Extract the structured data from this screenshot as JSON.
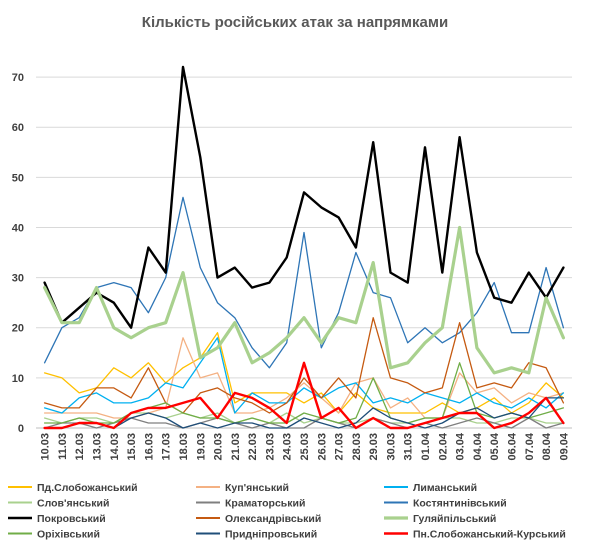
{
  "chart_data": {
    "type": "line",
    "title": "Кількість російських атак за напрямками",
    "ylim": [
      0,
      75
    ],
    "yticks": [
      0,
      10,
      20,
      30,
      40,
      50,
      60,
      70
    ],
    "grid": "horizontal",
    "legend_position": "bottom",
    "categories": [
      "10.03",
      "11.03",
      "12.03",
      "13.03",
      "14.03",
      "15.03",
      "16.03",
      "17.03",
      "18.03",
      "19.03",
      "20.03",
      "21.03",
      "22.03",
      "23.03",
      "24.03",
      "25.03",
      "26.03",
      "27.03",
      "28.03",
      "29.03",
      "30.03",
      "31.03",
      "01.04",
      "02.04",
      "03.04",
      "04.04",
      "05.04",
      "06.04",
      "07.04",
      "08.04",
      "09.04"
    ],
    "series": [
      {
        "name": "Пд.Слобожанський",
        "color": "#ffc000",
        "width": 1.3,
        "values": [
          11,
          10,
          7,
          8,
          12,
          10,
          13,
          9,
          12,
          14,
          19,
          5,
          7,
          7,
          7,
          5,
          7,
          3,
          7,
          4,
          3,
          3,
          3,
          5,
          3,
          4,
          6,
          3,
          5,
          9,
          6
        ]
      },
      {
        "name": "Куп'янський",
        "color": "#f4b183",
        "width": 1.3,
        "values": [
          3,
          3,
          3,
          3,
          2,
          2,
          3,
          4,
          18,
          10,
          11,
          3,
          3,
          4,
          6,
          9,
          6,
          3,
          9,
          10,
          4,
          6,
          2,
          2,
          11,
          7,
          8,
          5,
          7,
          6,
          7
        ]
      },
      {
        "name": "Лиманський",
        "color": "#00b0f0",
        "width": 1.3,
        "values": [
          4,
          3,
          6,
          7,
          5,
          5,
          6,
          9,
          8,
          13,
          18,
          3,
          7,
          5,
          5,
          8,
          6,
          8,
          9,
          5,
          6,
          5,
          7,
          6,
          5,
          7,
          5,
          4,
          6,
          4,
          7
        ]
      },
      {
        "name": "Слов'янський",
        "color": "#a9d18e",
        "width": 1.3,
        "values": [
          2,
          1,
          2,
          2,
          1,
          3,
          3,
          2,
          3,
          2,
          3,
          1,
          2,
          1,
          3,
          1,
          2,
          1,
          1,
          2,
          1,
          1,
          2,
          2,
          2,
          1,
          1,
          2,
          2,
          1,
          1
        ]
      },
      {
        "name": "Краматорський",
        "color": "#7f7f7f",
        "width": 1.3,
        "values": [
          0,
          1,
          1,
          0,
          1,
          2,
          1,
          1,
          0,
          1,
          2,
          1,
          0,
          1,
          0,
          0,
          2,
          1,
          0,
          2,
          1,
          0,
          1,
          0,
          1,
          2,
          1,
          0,
          2,
          0,
          1
        ]
      },
      {
        "name": "Костянтинівський",
        "color": "#2e75b6",
        "width": 1.3,
        "values": [
          13,
          20,
          22,
          28,
          29,
          28,
          23,
          30,
          46,
          32,
          25,
          22,
          16,
          12,
          17,
          39,
          16,
          23,
          35,
          27,
          26,
          17,
          20,
          17,
          19,
          23,
          29,
          19,
          19,
          32,
          20
        ]
      },
      {
        "name": "Покровський",
        "color": "#000000",
        "width": 2.4,
        "values": [
          29,
          21,
          24,
          27,
          25,
          20,
          36,
          31,
          72,
          54,
          30,
          32,
          28,
          29,
          34,
          47,
          44,
          42,
          36,
          57,
          31,
          29,
          56,
          31,
          58,
          35,
          26,
          25,
          31,
          26,
          32
        ]
      },
      {
        "name": "Олександрівський",
        "color": "#c55a11",
        "width": 1.3,
        "values": [
          5,
          4,
          4,
          8,
          8,
          6,
          12,
          5,
          3,
          7,
          8,
          6,
          5,
          3,
          5,
          10,
          6,
          10,
          6,
          22,
          10,
          9,
          7,
          8,
          21,
          8,
          9,
          8,
          13,
          12,
          5
        ]
      },
      {
        "name": "Гуляйпільський",
        "color": "#a9d18e",
        "width": 3.2,
        "values": [
          28,
          21,
          21,
          28,
          20,
          18,
          20,
          21,
          31,
          14,
          16,
          21,
          13,
          15,
          18,
          22,
          17,
          22,
          21,
          33,
          12,
          13,
          17,
          20,
          40,
          16,
          11,
          12,
          11,
          26,
          18
        ]
      },
      {
        "name": "Оріхівський",
        "color": "#70ad47",
        "width": 1.3,
        "values": [
          1,
          1,
          2,
          1,
          1,
          3,
          4,
          5,
          3,
          2,
          2,
          1,
          2,
          1,
          1,
          3,
          2,
          1,
          2,
          10,
          2,
          1,
          2,
          2,
          13,
          3,
          2,
          3,
          2,
          3,
          4
        ]
      },
      {
        "name": "Придніпровський",
        "color": "#1f4e79",
        "width": 1.3,
        "values": [
          0,
          0,
          1,
          1,
          0,
          2,
          3,
          2,
          0,
          1,
          0,
          1,
          1,
          0,
          0,
          2,
          1,
          0,
          1,
          4,
          2,
          1,
          0,
          1,
          3,
          4,
          2,
          3,
          2,
          6,
          6
        ]
      },
      {
        "name": "Пн.Слобожанський-Курський",
        "color": "#ff0000",
        "width": 2.4,
        "values": [
          0,
          0,
          1,
          1,
          0,
          3,
          4,
          4,
          5,
          6,
          2,
          7,
          6,
          4,
          1,
          13,
          2,
          4,
          0,
          2,
          0,
          0,
          1,
          2,
          3,
          3,
          0,
          1,
          3,
          6,
          1
        ]
      }
    ]
  }
}
